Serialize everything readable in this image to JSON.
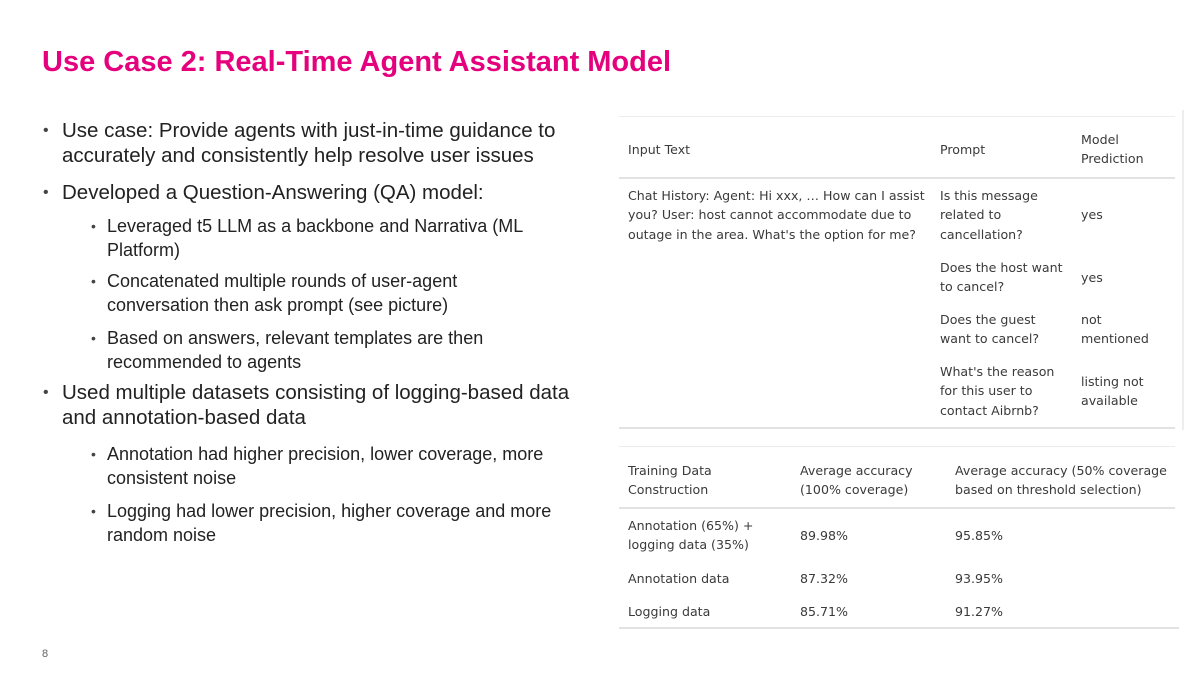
{
  "title": "Use Case 2: Real-Time Agent Assistant Model",
  "bullets": [
    "Use case: Provide agents with just-in-time guidance to accurately and consistently help resolve user issues",
    "Developed a Question-Answering (QA) model:",
    "Leveraged t5 LLM as a backbone and Narrativa (ML Platform)",
    "Concatenated multiple rounds of user-agent conversation then ask prompt (see picture)",
    "Based on answers, relevant templates are then recommended to agents",
    "Used multiple datasets consisting of logging-based data and annotation-based data",
    "Annotation had higher precision, lower coverage, more consistent noise",
    "Logging had lower precision, higher coverage and more random noise"
  ],
  "qa_table": {
    "headers": [
      "Input Text",
      "Prompt",
      "Model Prediction"
    ],
    "input_text": "Chat History: Agent: Hi xxx, … How can I assist you? User: host cannot accommodate due to outage in the area. What's the option for me?",
    "rows": [
      {
        "prompt": "Is this message related to cancellation?",
        "prediction": "yes"
      },
      {
        "prompt": "Does the host want to cancel?",
        "prediction": "yes"
      },
      {
        "prompt": "Does the guest want to cancel?",
        "prediction": "not mentioned"
      },
      {
        "prompt": "What's the reason for this user to contact Aibrnb?",
        "prediction": "listing not available"
      }
    ]
  },
  "accuracy_table": {
    "headers": [
      "Training Data Construction",
      "Average accuracy (100% coverage)",
      "Average accuracy (50% coverage based on threshold selection)"
    ],
    "rows": [
      [
        "Annotation (65%) + logging data (35%)",
        "89.98%",
        "95.85%"
      ],
      [
        "Annotation data",
        "87.32%",
        "93.95%"
      ],
      [
        "Logging data",
        "85.71%",
        "91.27%"
      ]
    ]
  },
  "page_number": "8"
}
